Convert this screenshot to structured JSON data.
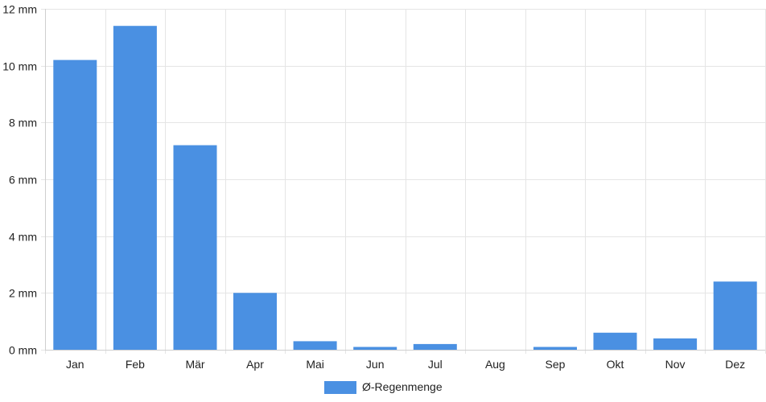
{
  "chart_data": {
    "type": "bar",
    "categories": [
      "Jan",
      "Feb",
      "Mär",
      "Apr",
      "Mai",
      "Jun",
      "Jul",
      "Aug",
      "Sep",
      "Okt",
      "Nov",
      "Dez"
    ],
    "series": [
      {
        "name": "Ø-Regenmenge",
        "values": [
          10.2,
          11.4,
          7.2,
          2.0,
          0.3,
          0.1,
          0.2,
          0.0,
          0.1,
          0.6,
          0.4,
          2.4
        ],
        "color": "#4a90e2"
      }
    ],
    "ylim": [
      0,
      12
    ],
    "yticks": [
      0,
      2,
      4,
      6,
      8,
      10,
      12
    ],
    "ytick_labels": [
      "0 mm",
      "2 mm",
      "4 mm",
      "6 mm",
      "8 mm",
      "10 mm",
      "12 mm"
    ],
    "grid": true,
    "legend_position": "bottom-center"
  }
}
